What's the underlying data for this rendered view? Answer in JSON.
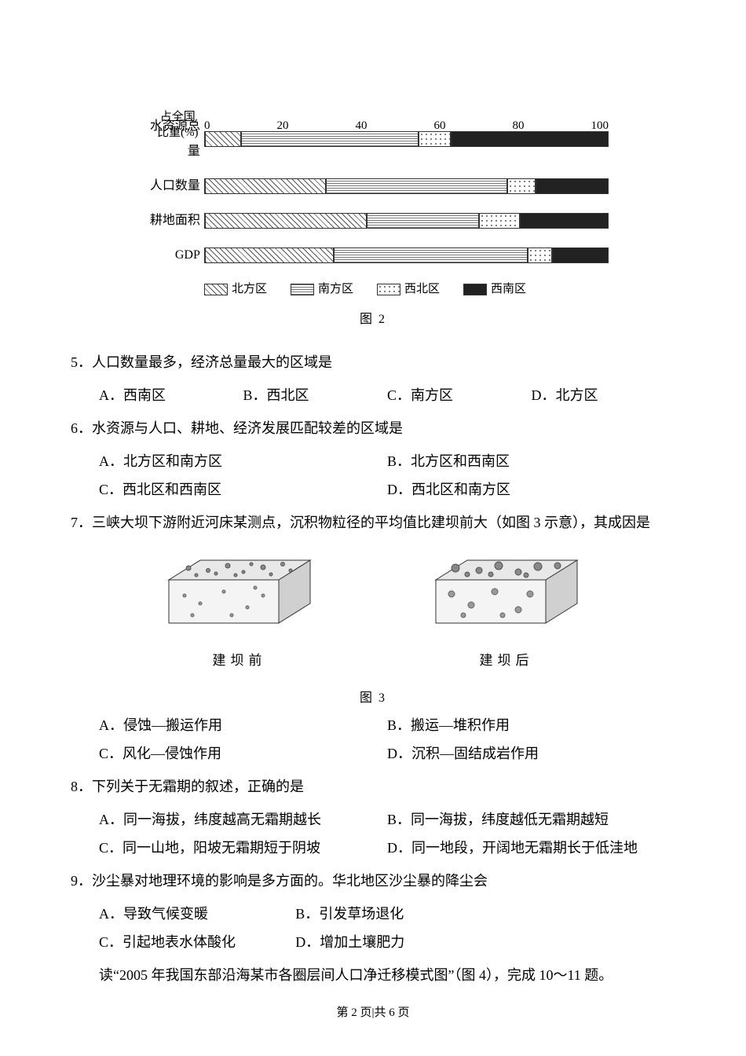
{
  "chart": {
    "type": "stacked-horizontal-bar",
    "y_axis_title_line1": "占全国",
    "y_axis_title_line2": "比重(%)",
    "axis_ticks": [
      0,
      20,
      40,
      60,
      80,
      100
    ],
    "categories": [
      "水资源总量",
      "人口数量",
      "耕地面积",
      "GDP"
    ],
    "series": [
      {
        "key": "north",
        "name": "北方区",
        "pattern_class": "pat-north"
      },
      {
        "key": "south",
        "name": "南方区",
        "pattern_class": "pat-south"
      },
      {
        "key": "nw",
        "name": "西北区",
        "pattern_class": "pat-nw"
      },
      {
        "key": "sw",
        "name": "西南区",
        "pattern_class": "pat-sw"
      }
    ],
    "values": {
      "水资源总量": {
        "north": 9,
        "south": 44,
        "nw": 8,
        "sw": 39
      },
      "人口数量": {
        "north": 30,
        "south": 45,
        "nw": 7,
        "sw": 18
      },
      "耕地面积": {
        "north": 40,
        "south": 28,
        "nw": 10,
        "sw": 22
      },
      "GDP": {
        "north": 32,
        "south": 48,
        "nw": 6,
        "sw": 14
      }
    },
    "caption": "图 2",
    "label_fontsize": 16,
    "tick_fontsize": 15
  },
  "q5": {
    "text": "5．人口数量最多，经济总量最大的区域是",
    "options": {
      "A": "A．西南区",
      "B": "B．西北区",
      "C": "C．南方区",
      "D": "D．北方区"
    }
  },
  "q6": {
    "text": "6．水资源与人口、耕地、经济发展匹配较差的区域是",
    "options": {
      "A": "A．北方区和南方区",
      "B": "B．北方区和西南区",
      "C": "C．西北区和西南区",
      "D": "D．西北区和南方区"
    }
  },
  "q7": {
    "text": "7．三峡大坝下游附近河床某测点，沉积物粒径的平均值比建坝前大（如图 3 示意），其成因是",
    "options": {
      "A": "A．侵蚀—搬运作用",
      "B": "B．搬运—堆积作用",
      "C": "C．风化—侵蚀作用",
      "D": "D．沉积—固结成岩作用"
    }
  },
  "fig3": {
    "left_label": "建坝前",
    "right_label": "建坝后",
    "caption": "图 3"
  },
  "q8": {
    "text": "8．下列关于无霜期的叙述，正确的是",
    "options": {
      "A": "A．同一海拔，纬度越高无霜期越长",
      "B": "B．同一海拔，纬度越低无霜期越短",
      "C": "C．同一山地，阳坡无霜期短于阴坡",
      "D": "D．同一地段，开阔地无霜期长于低洼地"
    }
  },
  "q9": {
    "text": "9．沙尘暴对地理环境的影响是多方面的。华北地区沙尘暴的降尘会",
    "options": {
      "A": "A．导致气候变暖",
      "B": "B．引发草场退化",
      "C": "C．引起地表水体酸化",
      "D": "D．增加土壤肥力"
    }
  },
  "intro10": "读“2005 年我国东部沿海某市各圈层间人口净迁移模式图”（图 4），完成 10～11 题。",
  "footer": "第 2 页|共 6 页"
}
